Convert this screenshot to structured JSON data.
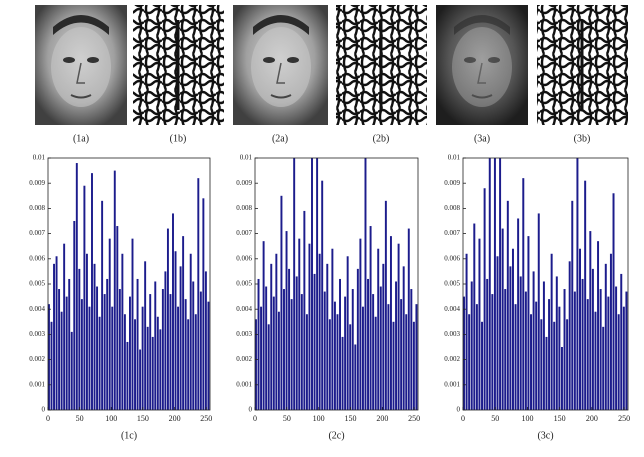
{
  "figure": {
    "panels": [
      {
        "label": "(1a)"
      },
      {
        "label": "(1b)"
      },
      {
        "label": "(2a)"
      },
      {
        "label": "(2b)"
      },
      {
        "label": "(3a)"
      },
      {
        "label": "(3b)"
      }
    ]
  },
  "chart_data": [
    {
      "type": "histogram",
      "x_label": "(1c)",
      "color": "#1c1c8c",
      "bins": [
        0,
        4,
        8,
        12,
        16,
        20,
        24,
        28,
        32,
        36,
        40,
        44,
        48,
        52,
        56,
        60,
        64,
        68,
        72,
        76,
        80,
        84,
        88,
        92,
        96,
        100,
        104,
        108,
        112,
        116,
        120,
        124,
        128,
        132,
        136,
        140,
        144,
        148,
        152,
        156,
        160,
        164,
        168,
        172,
        176,
        180,
        184,
        188,
        192,
        196,
        200,
        204,
        208,
        212,
        216,
        220,
        224,
        228,
        232,
        236,
        240,
        244,
        248,
        252,
        256
      ],
      "values": [
        0.0042,
        0.0035,
        0.0058,
        0.0061,
        0.0048,
        0.0039,
        0.0066,
        0.0045,
        0.0052,
        0.0031,
        0.0075,
        0.0098,
        0.0056,
        0.0044,
        0.0089,
        0.0062,
        0.0041,
        0.0094,
        0.0058,
        0.0049,
        0.0037,
        0.0083,
        0.0046,
        0.0052,
        0.0068,
        0.0041,
        0.0095,
        0.0073,
        0.0048,
        0.0062,
        0.0038,
        0.0027,
        0.0045,
        0.0068,
        0.0036,
        0.0052,
        0.0024,
        0.0041,
        0.0059,
        0.0033,
        0.0046,
        0.0029,
        0.0051,
        0.0037,
        0.0032,
        0.0048,
        0.0055,
        0.0072,
        0.0046,
        0.0078,
        0.0063,
        0.0041,
        0.0057,
        0.0069,
        0.0044,
        0.0036,
        0.0062,
        0.0051,
        0.0038,
        0.0092,
        0.0047,
        0.0084,
        0.0055,
        0.0043
      ],
      "xlim": [
        0,
        256
      ],
      "xticks": [
        0,
        50,
        100,
        150,
        200,
        250
      ],
      "ylim": [
        0,
        0.01
      ],
      "yticks": [
        0,
        0.001,
        0.002,
        0.003,
        0.004,
        0.005,
        0.006,
        0.007,
        0.008,
        0.009,
        0.01
      ]
    },
    {
      "type": "histogram",
      "x_label": "(2c)",
      "color": "#1c1c8c",
      "bins": [
        0,
        4,
        8,
        12,
        16,
        20,
        24,
        28,
        32,
        36,
        40,
        44,
        48,
        52,
        56,
        60,
        64,
        68,
        72,
        76,
        80,
        84,
        88,
        92,
        96,
        100,
        104,
        108,
        112,
        116,
        120,
        124,
        128,
        132,
        136,
        140,
        144,
        148,
        152,
        156,
        160,
        164,
        168,
        172,
        176,
        180,
        184,
        188,
        192,
        196,
        200,
        204,
        208,
        212,
        216,
        220,
        224,
        228,
        232,
        236,
        240,
        244,
        248,
        252,
        256
      ],
      "values": [
        0.0036,
        0.0052,
        0.0041,
        0.0067,
        0.0049,
        0.0034,
        0.0058,
        0.0045,
        0.0062,
        0.0039,
        0.0085,
        0.0048,
        0.0071,
        0.0056,
        0.0044,
        0.01,
        0.0053,
        0.0068,
        0.0046,
        0.0079,
        0.0038,
        0.0066,
        0.01,
        0.0054,
        0.01,
        0.0062,
        0.0091,
        0.0047,
        0.0058,
        0.0036,
        0.0064,
        0.0043,
        0.0038,
        0.0052,
        0.0029,
        0.0045,
        0.0061,
        0.0034,
        0.0048,
        0.0026,
        0.0056,
        0.0068,
        0.0041,
        0.01,
        0.0052,
        0.0073,
        0.0046,
        0.0037,
        0.0064,
        0.0049,
        0.0058,
        0.0083,
        0.0042,
        0.0069,
        0.0035,
        0.0051,
        0.0066,
        0.0044,
        0.0057,
        0.0038,
        0.0072,
        0.0048,
        0.0035,
        0.0042
      ],
      "xlim": [
        0,
        256
      ],
      "xticks": [
        0,
        50,
        100,
        150,
        200,
        250
      ],
      "ylim": [
        0,
        0.01
      ],
      "yticks": [
        0,
        0.001,
        0.002,
        0.003,
        0.004,
        0.005,
        0.006,
        0.007,
        0.008,
        0.009,
        0.01
      ]
    },
    {
      "type": "histogram",
      "x_label": "(3c)",
      "color": "#1c1c8c",
      "bins": [
        0,
        4,
        8,
        12,
        16,
        20,
        24,
        28,
        32,
        36,
        40,
        44,
        48,
        52,
        56,
        60,
        64,
        68,
        72,
        76,
        80,
        84,
        88,
        92,
        96,
        100,
        104,
        108,
        112,
        116,
        120,
        124,
        128,
        132,
        136,
        140,
        144,
        148,
        152,
        156,
        160,
        164,
        168,
        172,
        176,
        180,
        184,
        188,
        192,
        196,
        200,
        204,
        208,
        212,
        216,
        220,
        224,
        228,
        232,
        236,
        240,
        244,
        248,
        252,
        256
      ],
      "values": [
        0.0045,
        0.0062,
        0.0038,
        0.0051,
        0.0074,
        0.0042,
        0.0068,
        0.0035,
        0.0088,
        0.0052,
        0.01,
        0.0046,
        0.01,
        0.0061,
        0.01,
        0.0072,
        0.0048,
        0.0083,
        0.0057,
        0.0064,
        0.0042,
        0.0076,
        0.0053,
        0.0092,
        0.0047,
        0.0069,
        0.0038,
        0.0055,
        0.0043,
        0.0078,
        0.0036,
        0.0051,
        0.0029,
        0.0044,
        0.0062,
        0.0035,
        0.0053,
        0.0041,
        0.0025,
        0.0048,
        0.0036,
        0.0059,
        0.0083,
        0.0047,
        0.01,
        0.0064,
        0.0052,
        0.0091,
        0.0044,
        0.0071,
        0.0056,
        0.0039,
        0.0067,
        0.0048,
        0.0033,
        0.0058,
        0.0045,
        0.0062,
        0.0086,
        0.0049,
        0.0038,
        0.0054,
        0.0041,
        0.0047
      ],
      "xlim": [
        0,
        256
      ],
      "xticks": [
        0,
        50,
        100,
        150,
        200,
        250
      ],
      "ylim": [
        0,
        0.01
      ],
      "yticks": [
        0,
        0.001,
        0.002,
        0.003,
        0.004,
        0.005,
        0.006,
        0.007,
        0.008,
        0.009,
        0.01
      ]
    }
  ]
}
